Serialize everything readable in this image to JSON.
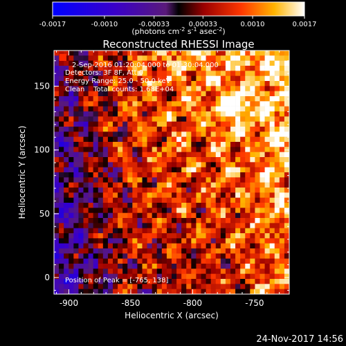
{
  "chart_data": {
    "type": "heatmap",
    "title": "Reconstructed RHESSI Image",
    "xlabel": "Heliocentric X (arcsec)",
    "ylabel": "Heliocentric Y (arcsec)",
    "xlim": [
      -912,
      -722
    ],
    "ylim": [
      -13,
      178
    ],
    "x_ticks": [
      -900,
      -850,
      -800,
      -750
    ],
    "x_tick_labels": [
      "-900",
      "-850",
      "-800",
      "-750"
    ],
    "y_ticks": [
      0,
      50,
      100,
      150
    ],
    "y_tick_labels": [
      "0",
      "50",
      "100",
      "150"
    ],
    "grid_cols": 48,
    "grid_rows": 48,
    "colorbar": {
      "ticks": [
        -0.0017,
        -0.001,
        -0.00033,
        0.00033,
        0.001,
        0.0017
      ],
      "tick_labels": [
        "-0.0017",
        "-0.0010",
        "-0.00033",
        "0.00033",
        "0.0010",
        "0.0017"
      ],
      "unit_label": "(photons cm",
      "unit_exp1": "-2",
      "unit_mid": " s",
      "unit_exp2": "-1",
      "unit_mid2": " asec",
      "unit_exp3": "-2",
      "unit_end": ")",
      "min": -0.0017,
      "max": 0.0017
    },
    "annotations": {
      "line1": "2-Sep-2016 01:20:04.000 to 01:30:04.000",
      "line2": "Detectors: 3F 8F, Att 0",
      "line3": "Energy Range: 25.0 - 50.0 keV",
      "line4": "Clean    Total counts: 1.68E+04",
      "peak": "Position of Peak = [-765, 138]"
    },
    "peak": {
      "x": -765,
      "y": 138
    }
  },
  "footer": {
    "date": "24-Nov-2017 14:56"
  }
}
